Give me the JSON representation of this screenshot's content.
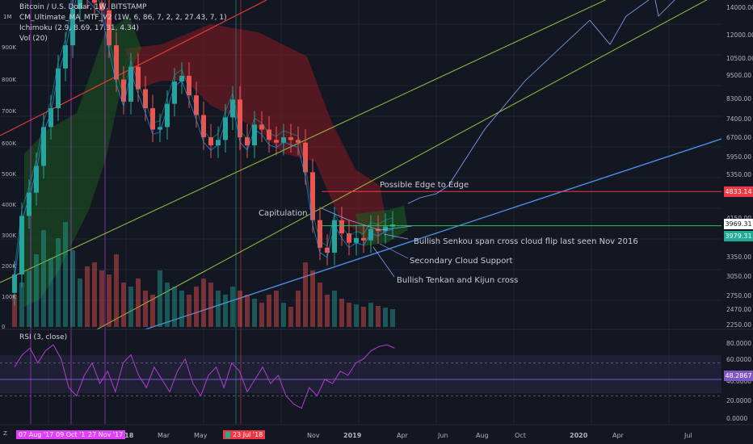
{
  "header": {
    "title": "Bitcoin / U.S. Dollar, 1W, BITSTAMP",
    "interval": "1M",
    "indicators": [
      "CM_Ultimate_MA_MTF_V2 (1W, 6, 86, 7, 2, 2, 27.43, 7, 1)",
      "Ichimoku (2.9, 8.69, 17.31, 4.34)",
      "Vol (20)"
    ],
    "rsi_label": "RSI (3, close)"
  },
  "left_axis_labels": [
    "900K",
    "800K",
    "700K",
    "600K",
    "500K",
    "400K",
    "300K",
    "200K",
    "100K",
    "0"
  ],
  "price_axis": [
    "14000.00",
    "12000.00",
    "10500.00",
    "9500.00",
    "8300.00",
    "7400.00",
    "6700.00",
    "5950.00",
    "5350.00",
    "4800.00",
    "4150.00",
    "3650.00",
    "3350.00",
    "3050.00",
    "2750.00",
    "2470.00",
    "2250.00"
  ],
  "price_tags": [
    {
      "value": "4833.14",
      "color": "#f23645"
    },
    {
      "value": "3969.31",
      "color": "#ffffff"
    },
    {
      "value": "3979.31",
      "color": "#22ab94"
    }
  ],
  "rsi_axis": [
    "80.0000",
    "60.0000",
    "40.0000",
    "20.0000",
    "0.0000"
  ],
  "rsi_tag": {
    "value": "48.2867",
    "color": "#7e57c2"
  },
  "time_axis": [
    "2018",
    "Mar",
    "May",
    "Nov",
    "2019",
    "Apr",
    "Jun",
    "Aug",
    "Oct",
    "2020",
    "Apr",
    "Jul"
  ],
  "time_tags": [
    {
      "label": "07 Aug '17",
      "color": "#e040fb"
    },
    {
      "label": "09 Oct '17",
      "color": "#e040fb"
    },
    {
      "label": "27 Nov '17",
      "color": "#e040fb"
    },
    {
      "label": "23 Jul '18",
      "color": "#f23645"
    }
  ],
  "annotations": {
    "edge": "Possible Edge to Edge",
    "capitulation": "Capitulation",
    "senkou": "Bullish Senkou span cross cloud flip last seen Nov 2016",
    "cloud_support": "Secondary Cloud Support",
    "tk_cross": "Bullish Tenkan and Kijun cross"
  },
  "colors": {
    "background": "#131722",
    "up": "#26a69a",
    "down": "#ef5350",
    "cloud_bear": "#8b1a24",
    "cloud_bull": "#1b5e20",
    "rsi_line": "#b040d0",
    "channel_green": "#9cc23c",
    "trend_blue": "#4a90e2",
    "resistance_red": "#e53935"
  },
  "chart_data": {
    "type": "candlestick",
    "symbol": "BTC/USD",
    "timeframe": "1W",
    "weekly_close_path": [
      3000,
      4200,
      4800,
      5600,
      7000,
      7800,
      9800,
      11200,
      13800,
      16500,
      14900,
      14300,
      13700,
      11200,
      9200,
      8100,
      9900,
      8700,
      7800,
      6900,
      7000,
      8000,
      9100,
      9400,
      8400,
      7500,
      6600,
      6300,
      6500,
      7400,
      8200,
      6600,
      6300,
      7100,
      6900,
      6500,
      6400,
      6600,
      6500,
      6400,
      5400,
      4100,
      3500,
      3400,
      4100,
      3800,
      3600,
      3700,
      3650,
      3900,
      3850,
      3950,
      4000
    ],
    "key_levels": [
      {
        "name": "resistance",
        "value": 4833.14
      },
      {
        "name": "last",
        "value": 3969.31
      }
    ],
    "rsi_path": [
      65,
      80,
      88,
      70,
      85,
      92,
      75,
      40,
      30,
      55,
      70,
      45,
      60,
      35,
      70,
      80,
      55,
      40,
      65,
      50,
      35,
      60,
      75,
      45,
      30,
      55,
      65,
      40,
      70,
      60,
      35,
      50,
      65,
      45,
      55,
      30,
      20,
      15,
      40,
      30,
      50,
      45,
      60,
      55,
      70,
      75,
      85,
      90,
      92,
      88
    ],
    "rsi_levels": [
      70,
      50,
      30
    ]
  }
}
